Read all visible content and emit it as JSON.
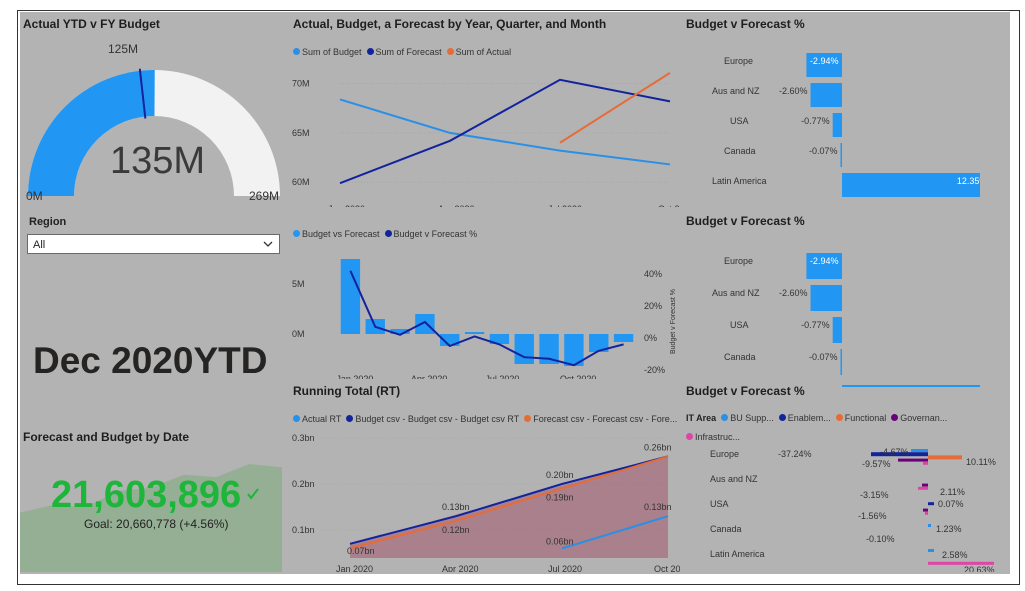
{
  "gauge": {
    "title": "Actual YTD v FY Budget",
    "value_label": "135M",
    "min_label": "0M",
    "max_label": "269M",
    "target_label": "125M",
    "value": 135,
    "min": 0,
    "max": 269,
    "target": 125,
    "fill_color": "#2196f3",
    "track_color": "#f2f2f2"
  },
  "region_slicer": {
    "label": "Region",
    "selected": "All"
  },
  "ytd_card": {
    "text": "Dec 2020YTD"
  },
  "kpi": {
    "title": "Forecast and Budget by Date",
    "value": "21,603,896",
    "goal_text": "Goal: 20,660,778 (+4.56%)",
    "value_color": "#1db53a",
    "trend": [
      0.55,
      0.62,
      0.6,
      0.75,
      0.78,
      0.9,
      0.88,
      1.0,
      0.97
    ]
  },
  "abf_chart": {
    "title": "Actual, Budget, a Forecast by Year, Quarter, and Month",
    "legend": [
      {
        "name": "Sum of Budget",
        "color": "#2a8fe6"
      },
      {
        "name": "Sum of Forecast",
        "color": "#12239e"
      },
      {
        "name": "Sum of Actual",
        "color": "#e66c37"
      }
    ],
    "x_ticks": [
      "Jan 2020",
      "Apr 2020",
      "Jul 2020",
      "Oct 2020"
    ],
    "y_ticks": [
      "60M",
      "65M",
      "70M"
    ],
    "ylim": [
      59,
      72
    ],
    "chart_data": {
      "type": "line",
      "x": [
        0,
        3,
        6,
        9
      ],
      "series": [
        {
          "name": "Sum of Budget",
          "values": [
            68.4,
            65.0,
            63.2,
            61.8
          ]
        },
        {
          "name": "Sum of Forecast",
          "values": [
            59.9,
            64.2,
            70.4,
            68.2
          ]
        },
        {
          "name": "Sum of Actual",
          "values": [
            null,
            null,
            64.0,
            71.1
          ]
        }
      ]
    }
  },
  "bvf_combo": {
    "legend": [
      {
        "name": "Budget vs Forecast",
        "color": "#2196f3"
      },
      {
        "name": "Budget v Forecast %",
        "color": "#12239e"
      }
    ],
    "x_ticks": [
      "Jan 2020",
      "Apr 2020",
      "Jul 2020",
      "Oct 2020"
    ],
    "y_ticks_left": [
      "5M",
      "0M"
    ],
    "y_ticks_right": [
      "40%",
      "20%",
      "0%",
      "-20%"
    ],
    "right_axis_label": "Budget v Forecast %",
    "chart_data": {
      "type": "bar",
      "categories": [
        "Jan",
        "Feb",
        "Mar",
        "Apr",
        "May",
        "Jun",
        "Jul",
        "Aug",
        "Sep",
        "Oct",
        "Nov",
        "Dec"
      ],
      "series": [
        {
          "name": "Budget vs Forecast",
          "values": [
            7.5,
            1.5,
            0.5,
            2.0,
            -1.2,
            0.2,
            -1.0,
            -3.0,
            -3.0,
            -3.2,
            -1.8,
            -0.8
          ]
        },
        {
          "name": "Budget v Forecast %",
          "values": [
            42,
            7,
            2,
            10,
            -5,
            1,
            -4,
            -12,
            -13,
            -17,
            -8,
            -4
          ]
        }
      ]
    }
  },
  "rt_chart": {
    "title": "Running Total (RT)",
    "legend": [
      {
        "name": "Actual RT",
        "color": "#2a8fe6"
      },
      {
        "name": "Budget csv - Budget csv - Budget csv RT",
        "color": "#12239e"
      },
      {
        "name": "Forecast csv - Forecast csv - Fore...",
        "color": "#e66c37"
      }
    ],
    "x_ticks": [
      "Jan 2020",
      "Apr 2020",
      "Jul 2020",
      "Oct 2020"
    ],
    "y_ticks": [
      "0.3bn",
      "0.2bn",
      "0.1bn"
    ],
    "data_labels": [
      "0.07bn",
      "0.13bn",
      "0.12bn",
      "0.20bn",
      "0.19bn",
      "0.06bn",
      "0.26bn",
      "0.13bn"
    ],
    "chart_data": {
      "type": "area",
      "x": [
        0,
        3,
        6,
        9
      ],
      "series": [
        {
          "name": "Budget csv - Budget csv - Budget csv RT",
          "values": [
            0.07,
            0.13,
            0.2,
            0.26
          ]
        },
        {
          "name": "Forecast csv - Forecast csv - Fore...",
          "values": [
            0.06,
            0.12,
            0.19,
            0.26
          ]
        },
        {
          "name": "Actual RT",
          "values": [
            null,
            null,
            0.06,
            0.13
          ]
        }
      ]
    }
  },
  "bvf_bars_1": {
    "title": "Budget v Forecast %",
    "chart_data": {
      "type": "bar",
      "categories": [
        "Europe",
        "Aus and NZ",
        "USA",
        "Canada",
        "Latin America"
      ],
      "values": [
        -2.94,
        -2.6,
        -0.77,
        -0.07,
        12.35
      ],
      "labels": [
        "-2.94%",
        "-2.60%",
        "-0.77%",
        "-0.07%",
        "12.35%"
      ]
    }
  },
  "bvf_bars_2": {
    "title": "Budget v Forecast %",
    "chart_data": {
      "type": "bar",
      "categories": [
        "Europe",
        "Aus and NZ",
        "USA",
        "Canada"
      ],
      "values": [
        -2.94,
        -2.6,
        -0.77,
        -0.07
      ],
      "labels": [
        "-2.94%",
        "-2.60%",
        "-0.77%",
        "-0.07%"
      ]
    }
  },
  "bvf_it": {
    "title": "Budget v Forecast %",
    "legend_title": "IT Area",
    "legend": [
      {
        "name": "BU Supp...",
        "color": "#2a8fe6"
      },
      {
        "name": "Enablem...",
        "color": "#12239e"
      },
      {
        "name": "Functional",
        "color": "#e66c37"
      },
      {
        "name": "Governan...",
        "color": "#6b007b"
      },
      {
        "name": "Infrastruc...",
        "color": "#e044a7"
      }
    ],
    "categories": [
      "Europe",
      "Aus and NZ",
      "USA",
      "Canada",
      "Latin America"
    ],
    "data_labels": [
      "-37.24%",
      "-4.67%",
      "-9.57%",
      "10.11%",
      "2.11%",
      "-3.15%",
      "0.07%",
      "-1.56%",
      "1.23%",
      "-0.10%",
      "2.58%",
      "20.63%"
    ]
  }
}
